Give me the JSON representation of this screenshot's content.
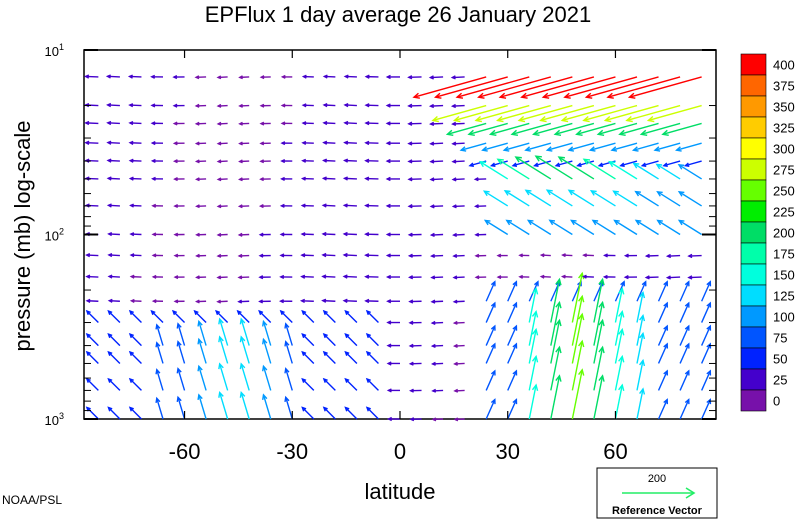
{
  "chart_data": {
    "type": "vector-field",
    "title": "EPFlux  1 day average  26 January   2021",
    "xlabel": "latitude",
    "ylabel": "pressure (mb)  log-scale",
    "x_ticks": [
      "-60",
      "-30",
      "0",
      "30",
      "60"
    ],
    "x_tick_values": [
      -60,
      -30,
      0,
      30,
      60
    ],
    "xlim": [
      -88,
      88
    ],
    "y_ticks": [
      {
        "base": "10",
        "exp": "1",
        "value": 10
      },
      {
        "base": "10",
        "exp": "2",
        "value": 100
      },
      {
        "base": "10",
        "exp": "3",
        "value": 1000
      }
    ],
    "ylim": [
      10,
      1000
    ],
    "y_scale": "log",
    "colorbar": {
      "levels": [
        "400",
        "375",
        "350",
        "325",
        "300",
        "275",
        "250",
        "225",
        "200",
        "175",
        "150",
        "125",
        "100",
        "75",
        "50",
        "25",
        "0"
      ],
      "colors": [
        "#ff0000",
        "#ff6600",
        "#ff9900",
        "#ffcc00",
        "#ffff00",
        "#ccff00",
        "#66ff00",
        "#00ee00",
        "#00dd66",
        "#00ffaa",
        "#00ffdd",
        "#00ddff",
        "#0099ff",
        "#0055ff",
        "#0022ff",
        "#4400cc",
        "#7711aa"
      ]
    },
    "reference_vector": {
      "magnitude": "200",
      "label": "Reference Vector",
      "color": "#22ee66"
    },
    "credit": "NOAA/PSL",
    "notes": "Eliassen-Palm flux arrows on a latitude grid; strongest flux (red/orange) in the northern stratosphere 30-80N near 10-30 mb; green/cyan upward arrows in the northern troposphere near 40-60N; weaker blue arrows elsewhere."
  }
}
